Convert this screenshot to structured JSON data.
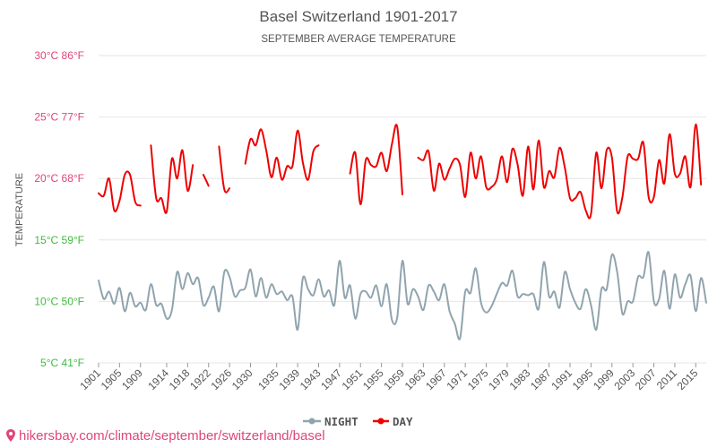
{
  "chart_data": {
    "type": "line",
    "title": "Basel Switzerland 1901-2017",
    "subtitle": "SEPTEMBER AVERAGE TEMPERATURE",
    "ylabel": "TEMPERATURE",
    "xlabel": "",
    "ylim": [
      5,
      30
    ],
    "xlim": [
      1901,
      2017
    ],
    "y_ticks": [
      {
        "value": 30,
        "label": "30°C 86°F",
        "color": "#e0457b"
      },
      {
        "value": 25,
        "label": "25°C 77°F",
        "color": "#e0457b"
      },
      {
        "value": 20,
        "label": "20°C 68°F",
        "color": "#e0457b"
      },
      {
        "value": 15,
        "label": "15°C 59°F",
        "color": "#3dbb3d"
      },
      {
        "value": 10,
        "label": "10°C 50°F",
        "color": "#3dbb3d"
      },
      {
        "value": 5,
        "label": "5°C 41°F",
        "color": "#3dbb3d"
      }
    ],
    "x_ticks": [
      1901,
      1905,
      1909,
      1914,
      1918,
      1922,
      1926,
      1930,
      1935,
      1939,
      1943,
      1947,
      1951,
      1955,
      1959,
      1963,
      1967,
      1971,
      1975,
      1979,
      1983,
      1987,
      1991,
      1995,
      1999,
      2003,
      2007,
      2011,
      2015
    ],
    "legend_position": "bottom-center",
    "grid": "horizontal",
    "series": [
      {
        "name": "NIGHT",
        "color": "#90a4ae",
        "x": [
          1901,
          1902,
          1903,
          1904,
          1905,
          1906,
          1907,
          1908,
          1909,
          1910,
          1911,
          1912,
          1913,
          1914,
          1915,
          1916,
          1917,
          1918,
          1919,
          1920,
          1921,
          1922,
          1923,
          1924,
          1925,
          1926,
          1927,
          1928,
          1929,
          1930,
          1931,
          1932,
          1933,
          1934,
          1935,
          1936,
          1937,
          1938,
          1939,
          1940,
          1941,
          1942,
          1943,
          1944,
          1945,
          1946,
          1947,
          1948,
          1949,
          1950,
          1951,
          1952,
          1953,
          1954,
          1955,
          1956,
          1957,
          1958,
          1959,
          1960,
          1961,
          1962,
          1963,
          1964,
          1965,
          1966,
          1967,
          1968,
          1969,
          1970,
          1971,
          1972,
          1973,
          1974,
          1975,
          1976,
          1977,
          1978,
          1979,
          1980,
          1981,
          1982,
          1983,
          1984,
          1985,
          1986,
          1987,
          1988,
          1989,
          1990,
          1991,
          1992,
          1993,
          1994,
          1995,
          1996,
          1997,
          1998,
          1999,
          2000,
          2001,
          2002,
          2003,
          2004,
          2005,
          2006,
          2007,
          2008,
          2009,
          2010,
          2011,
          2012,
          2013,
          2014,
          2015,
          2016,
          2017
        ],
        "values": [
          11.7,
          10.2,
          10.8,
          9.8,
          11.1,
          9.2,
          10.7,
          9.6,
          9.9,
          9.3,
          11.4,
          9.7,
          9.8,
          8.6,
          9.3,
          12.4,
          11.0,
          12.3,
          11.4,
          11.9,
          9.7,
          10.3,
          11.2,
          9.2,
          12.4,
          12.0,
          10.4,
          10.9,
          11.1,
          12.6,
          10.4,
          11.9,
          10.3,
          11.4,
          10.6,
          10.8,
          10.1,
          10.4,
          7.7,
          11.9,
          11.0,
          10.5,
          11.8,
          10.4,
          10.9,
          9.7,
          13.3,
          10.3,
          11.3,
          8.6,
          10.6,
          10.8,
          10.3,
          11.3,
          9.6,
          11.4,
          8.5,
          8.7,
          13.3,
          9.8,
          11.0,
          10.4,
          9.3,
          11.3,
          10.8,
          10.1,
          11.4,
          9.2,
          8.2,
          7.0,
          10.8,
          10.7,
          12.7,
          9.9,
          9.1,
          9.6,
          10.6,
          11.5,
          11.3,
          12.5,
          10.4,
          10.6,
          10.5,
          10.6,
          9.4,
          13.2,
          10.4,
          10.8,
          9.5,
          12.4,
          11.0,
          9.9,
          9.4,
          11.0,
          9.7,
          7.7,
          11.0,
          11.0,
          13.8,
          12.4,
          9.0,
          10.0,
          10.0,
          12.0,
          12.0,
          14.0,
          10.0,
          10.2,
          12.5,
          9.4,
          12.2,
          10.3,
          11.4,
          12.1,
          9.2,
          11.9,
          9.9
        ]
      },
      {
        "name": "DAY",
        "color": "#ee0000",
        "x": [
          1901,
          1902,
          1903,
          1904,
          1905,
          1906,
          1907,
          1908,
          1909,
          1910,
          1911,
          1912,
          1913,
          1914,
          1915,
          1916,
          1917,
          1918,
          1919,
          1920,
          1921,
          1922,
          1923,
          1924,
          1925,
          1926,
          1927,
          1928,
          1929,
          1930,
          1931,
          1932,
          1933,
          1934,
          1935,
          1936,
          1937,
          1938,
          1939,
          1940,
          1941,
          1942,
          1943,
          1944,
          1945,
          1946,
          1947,
          1948,
          1949,
          1950,
          1951,
          1952,
          1953,
          1954,
          1955,
          1956,
          1957,
          1958,
          1959,
          1960,
          1961,
          1962,
          1963,
          1964,
          1965,
          1966,
          1967,
          1968,
          1969,
          1970,
          1971,
          1972,
          1973,
          1974,
          1975,
          1976,
          1977,
          1978,
          1979,
          1980,
          1981,
          1982,
          1983,
          1984,
          1985,
          1986,
          1987,
          1988,
          1989,
          1990,
          1991,
          1992,
          1993,
          1994,
          1995,
          1996,
          1997,
          1998,
          1999,
          2000,
          2001,
          2002,
          2003,
          2004,
          2005,
          2006,
          2007,
          2008,
          2009,
          2010,
          2011,
          2012,
          2013,
          2014,
          2015,
          2016,
          2017
        ],
        "values": [
          18.8,
          18.6,
          20.0,
          17.4,
          18.2,
          20.3,
          20.3,
          18.1,
          17.8,
          null,
          22.7,
          18.4,
          18.4,
          17.3,
          21.6,
          20.0,
          22.3,
          19.0,
          21.1,
          null,
          20.3,
          19.4,
          null,
          22.6,
          19.1,
          19.2,
          null,
          null,
          21.2,
          23.2,
          22.7,
          24.0,
          22.3,
          20.1,
          21.7,
          19.9,
          21.0,
          21.0,
          23.9,
          21.3,
          19.9,
          22.2,
          22.7,
          null,
          null,
          null,
          null,
          null,
          20.4,
          22.1,
          17.9,
          21.5,
          21.1,
          21.0,
          22.1,
          20.6,
          22.8,
          24.2,
          18.7,
          null,
          null,
          21.7,
          21.5,
          22.2,
          19.0,
          21.2,
          19.9,
          20.8,
          21.6,
          21.1,
          18.5,
          22.1,
          20.0,
          21.8,
          19.3,
          19.3,
          19.9,
          21.8,
          19.7,
          22.4,
          21.1,
          18.6,
          22.6,
          19.1,
          23.1,
          19.3,
          20.6,
          20.1,
          22.5,
          20.9,
          18.4,
          18.4,
          18.9,
          17.4,
          17.1,
          22.1,
          19.2,
          22.3,
          21.7,
          17.3,
          18.5,
          21.8,
          21.6,
          21.6,
          22.9,
          18.5,
          18.5,
          21.5,
          19.6,
          23.6,
          20.4,
          20.4,
          21.8,
          19.3,
          24.4,
          19.5,
          null
        ]
      }
    ]
  },
  "legend": {
    "night_label": "NIGHT",
    "day_label": "DAY"
  },
  "footer": {
    "link_text": "hikersbay.com/climate/september/switzerland/basel"
  },
  "colors": {
    "night": "#90a4ae",
    "day": "#ee0000",
    "warm_tick": "#e0457b",
    "cool_tick": "#3dbb3d",
    "grid": "#e6e6e6"
  }
}
